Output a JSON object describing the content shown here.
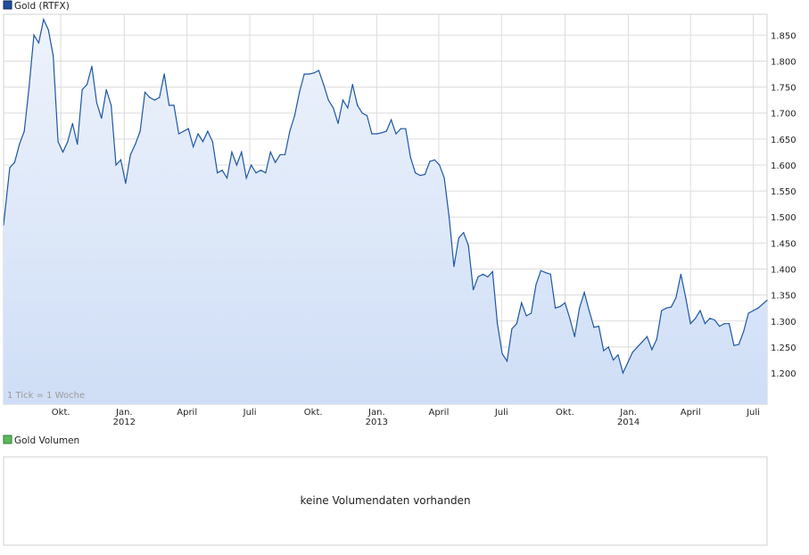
{
  "price_panel": {
    "legend": "Gold (RTFX)",
    "legend_color": "#1f4e9a",
    "tick_note": "1 Tick = 1 Woche"
  },
  "volume_panel": {
    "legend": "Gold Volumen",
    "legend_color": "#5cb85c",
    "message": "keine Volumendaten vorhanden"
  },
  "colors": {
    "line": "#1d57a3",
    "fill_top": "#eef3fc",
    "fill_bottom": "#cfdef6",
    "grid": "#dcdcdc"
  },
  "chart_data": {
    "type": "area",
    "title": "Gold (RTFX)",
    "y_axis_side": "right",
    "ylim": [
      1140,
      1890
    ],
    "y_ticks": [
      1200,
      1250,
      1300,
      1350,
      1400,
      1450,
      1500,
      1550,
      1600,
      1650,
      1700,
      1750,
      1800,
      1850
    ],
    "y_tick_labels": [
      "1.200",
      "1.250",
      "1.300",
      "1.350",
      "1.400",
      "1.450",
      "1.500",
      "1.550",
      "1.600",
      "1.650",
      "1.700",
      "1.750",
      "1.800",
      "1.850"
    ],
    "xlim": [
      "2011-07-10",
      "2014-07-21"
    ],
    "x_ticks": [
      {
        "date": "2011-10-01",
        "label": "Okt.",
        "year": ""
      },
      {
        "date": "2012-01-01",
        "label": "Jan.",
        "year": "2012"
      },
      {
        "date": "2012-04-01",
        "label": "April",
        "year": ""
      },
      {
        "date": "2012-07-01",
        "label": "Juli",
        "year": ""
      },
      {
        "date": "2012-10-01",
        "label": "Okt.",
        "year": ""
      },
      {
        "date": "2013-01-01",
        "label": "Jan.",
        "year": "2013"
      },
      {
        "date": "2013-04-01",
        "label": "April",
        "year": ""
      },
      {
        "date": "2013-07-01",
        "label": "Juli",
        "year": ""
      },
      {
        "date": "2013-10-01",
        "label": "Okt.",
        "year": ""
      },
      {
        "date": "2014-01-01",
        "label": "Jan.",
        "year": "2014"
      },
      {
        "date": "2014-04-01",
        "label": "April",
        "year": ""
      },
      {
        "date": "2014-07-01",
        "label": "Juli",
        "year": ""
      }
    ],
    "grid": true,
    "series": [
      {
        "name": "Gold (RTFX)",
        "points": [
          [
            "2011-07-10",
            1485
          ],
          [
            "2011-07-19",
            1595
          ],
          [
            "2011-07-26",
            1605
          ],
          [
            "2011-08-02",
            1640
          ],
          [
            "2011-08-09",
            1665
          ],
          [
            "2011-08-16",
            1750
          ],
          [
            "2011-08-23",
            1850
          ],
          [
            "2011-08-30",
            1835
          ],
          [
            "2011-09-06",
            1880
          ],
          [
            "2011-09-13",
            1860
          ],
          [
            "2011-09-20",
            1810
          ],
          [
            "2011-09-27",
            1645
          ],
          [
            "2011-10-04",
            1625
          ],
          [
            "2011-10-11",
            1645
          ],
          [
            "2011-10-18",
            1680
          ],
          [
            "2011-10-25",
            1640
          ],
          [
            "2011-11-01",
            1745
          ],
          [
            "2011-11-08",
            1755
          ],
          [
            "2011-11-15",
            1790
          ],
          [
            "2011-11-22",
            1720
          ],
          [
            "2011-11-29",
            1690
          ],
          [
            "2011-12-06",
            1745
          ],
          [
            "2011-12-13",
            1715
          ],
          [
            "2011-12-20",
            1600
          ],
          [
            "2011-12-27",
            1610
          ],
          [
            "2012-01-03",
            1565
          ],
          [
            "2012-01-10",
            1620
          ],
          [
            "2012-01-17",
            1640
          ],
          [
            "2012-01-24",
            1665
          ],
          [
            "2012-01-31",
            1740
          ],
          [
            "2012-02-07",
            1730
          ],
          [
            "2012-02-14",
            1725
          ],
          [
            "2012-02-21",
            1730
          ],
          [
            "2012-02-28",
            1775
          ],
          [
            "2012-03-06",
            1715
          ],
          [
            "2012-03-13",
            1715
          ],
          [
            "2012-03-20",
            1660
          ],
          [
            "2012-03-27",
            1665
          ],
          [
            "2012-04-03",
            1670
          ],
          [
            "2012-04-10",
            1635
          ],
          [
            "2012-04-17",
            1660
          ],
          [
            "2012-04-24",
            1645
          ],
          [
            "2012-05-01",
            1665
          ],
          [
            "2012-05-08",
            1645
          ],
          [
            "2012-05-15",
            1585
          ],
          [
            "2012-05-22",
            1590
          ],
          [
            "2012-05-29",
            1575
          ],
          [
            "2012-06-05",
            1625
          ],
          [
            "2012-06-12",
            1600
          ],
          [
            "2012-06-19",
            1625
          ],
          [
            "2012-06-26",
            1575
          ],
          [
            "2012-07-03",
            1600
          ],
          [
            "2012-07-10",
            1585
          ],
          [
            "2012-07-17",
            1590
          ],
          [
            "2012-07-24",
            1585
          ],
          [
            "2012-07-31",
            1625
          ],
          [
            "2012-08-07",
            1605
          ],
          [
            "2012-08-14",
            1620
          ],
          [
            "2012-08-21",
            1620
          ],
          [
            "2012-08-28",
            1665
          ],
          [
            "2012-09-04",
            1695
          ],
          [
            "2012-09-11",
            1740
          ],
          [
            "2012-09-18",
            1775
          ],
          [
            "2012-09-25",
            1775
          ],
          [
            "2012-10-02",
            1777
          ],
          [
            "2012-10-09",
            1782
          ],
          [
            "2012-10-16",
            1755
          ],
          [
            "2012-10-23",
            1725
          ],
          [
            "2012-10-30",
            1710
          ],
          [
            "2012-11-06",
            1680
          ],
          [
            "2012-11-13",
            1725
          ],
          [
            "2012-11-20",
            1710
          ],
          [
            "2012-11-27",
            1755
          ],
          [
            "2012-12-04",
            1715
          ],
          [
            "2012-12-11",
            1700
          ],
          [
            "2012-12-18",
            1695
          ],
          [
            "2012-12-25",
            1660
          ],
          [
            "2013-01-01",
            1660
          ],
          [
            "2013-01-08",
            1662
          ],
          [
            "2013-01-15",
            1665
          ],
          [
            "2013-01-22",
            1687
          ],
          [
            "2013-01-29",
            1660
          ],
          [
            "2013-02-05",
            1670
          ],
          [
            "2013-02-12",
            1670
          ],
          [
            "2013-02-19",
            1615
          ],
          [
            "2013-02-26",
            1585
          ],
          [
            "2013-03-05",
            1580
          ],
          [
            "2013-03-12",
            1582
          ],
          [
            "2013-03-19",
            1607
          ],
          [
            "2013-03-26",
            1610
          ],
          [
            "2013-04-02",
            1600
          ],
          [
            "2013-04-09",
            1575
          ],
          [
            "2013-04-16",
            1500
          ],
          [
            "2013-04-23",
            1405
          ],
          [
            "2013-04-30",
            1460
          ],
          [
            "2013-05-07",
            1470
          ],
          [
            "2013-05-14",
            1445
          ],
          [
            "2013-05-21",
            1360
          ],
          [
            "2013-05-28",
            1385
          ],
          [
            "2013-06-04",
            1390
          ],
          [
            "2013-06-11",
            1385
          ],
          [
            "2013-06-18",
            1395
          ],
          [
            "2013-06-25",
            1295
          ],
          [
            "2013-07-02",
            1237
          ],
          [
            "2013-07-09",
            1223
          ],
          [
            "2013-07-16",
            1285
          ],
          [
            "2013-07-23",
            1295
          ],
          [
            "2013-07-30",
            1335
          ],
          [
            "2013-08-06",
            1310
          ],
          [
            "2013-08-13",
            1315
          ],
          [
            "2013-08-20",
            1370
          ],
          [
            "2013-08-27",
            1397
          ],
          [
            "2013-09-03",
            1393
          ],
          [
            "2013-09-10",
            1390
          ],
          [
            "2013-09-17",
            1325
          ],
          [
            "2013-09-24",
            1328
          ],
          [
            "2013-10-01",
            1335
          ],
          [
            "2013-10-08",
            1305
          ],
          [
            "2013-10-15",
            1270
          ],
          [
            "2013-10-22",
            1325
          ],
          [
            "2013-10-29",
            1355
          ],
          [
            "2013-11-05",
            1320
          ],
          [
            "2013-11-12",
            1288
          ],
          [
            "2013-11-19",
            1290
          ],
          [
            "2013-11-26",
            1243
          ],
          [
            "2013-12-03",
            1250
          ],
          [
            "2013-12-10",
            1225
          ],
          [
            "2013-12-17",
            1235
          ],
          [
            "2013-12-24",
            1200
          ],
          [
            "2013-12-31",
            1220
          ],
          [
            "2014-01-07",
            1240
          ],
          [
            "2014-01-14",
            1250
          ],
          [
            "2014-01-21",
            1260
          ],
          [
            "2014-01-28",
            1270
          ],
          [
            "2014-02-04",
            1245
          ],
          [
            "2014-02-11",
            1265
          ],
          [
            "2014-02-18",
            1320
          ],
          [
            "2014-02-25",
            1325
          ],
          [
            "2014-03-04",
            1327
          ],
          [
            "2014-03-11",
            1345
          ],
          [
            "2014-03-18",
            1390
          ],
          [
            "2014-03-25",
            1345
          ],
          [
            "2014-04-01",
            1295
          ],
          [
            "2014-04-08",
            1305
          ],
          [
            "2014-04-15",
            1320
          ],
          [
            "2014-04-22",
            1295
          ],
          [
            "2014-04-29",
            1305
          ],
          [
            "2014-05-06",
            1302
          ],
          [
            "2014-05-13",
            1290
          ],
          [
            "2014-05-20",
            1295
          ],
          [
            "2014-05-27",
            1295
          ],
          [
            "2014-06-03",
            1253
          ],
          [
            "2014-06-10",
            1255
          ],
          [
            "2014-06-17",
            1280
          ],
          [
            "2014-06-24",
            1315
          ],
          [
            "2014-07-01",
            1320
          ],
          [
            "2014-07-08",
            1325
          ],
          [
            "2014-07-21",
            1340
          ]
        ]
      }
    ]
  }
}
